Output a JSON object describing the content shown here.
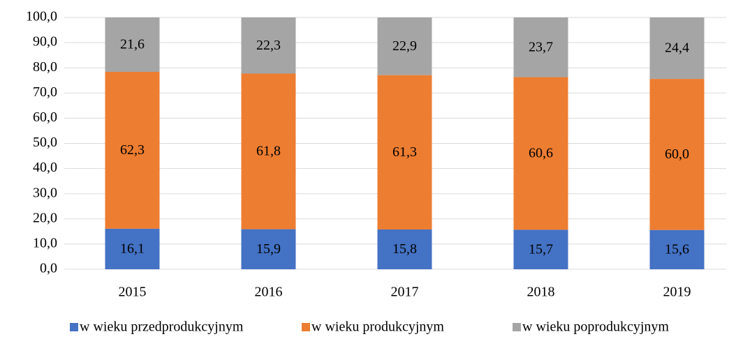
{
  "chart_data": {
    "type": "stacked_bar",
    "categories": [
      "2015",
      "2016",
      "2017",
      "2018",
      "2019"
    ],
    "series": [
      {
        "name": "w wieku przedprodukcyjnym",
        "color": "#4472c4",
        "values": [
          16.1,
          15.9,
          15.8,
          15.7,
          15.6
        ],
        "value_labels": [
          "16,1",
          "15,9",
          "15,8",
          "15,7",
          "15,6"
        ]
      },
      {
        "name": "w wieku produkcyjnym",
        "color": "#ed7d31",
        "values": [
          62.3,
          61.8,
          61.3,
          60.6,
          60.0
        ],
        "value_labels": [
          "62,3",
          "61,8",
          "61,3",
          "60,6",
          "60,0"
        ]
      },
      {
        "name": "w wieku poprodukcyjnym",
        "color": "#a5a5a5",
        "values": [
          21.6,
          22.3,
          22.9,
          23.7,
          24.4
        ],
        "value_labels": [
          "21,6",
          "22,3",
          "22,9",
          "23,7",
          "24,4"
        ]
      }
    ],
    "ylim": [
      0,
      100
    ],
    "yticks": [
      {
        "value": 0,
        "label": "0,0"
      },
      {
        "value": 10,
        "label": "10,0"
      },
      {
        "value": 20,
        "label": "20,0"
      },
      {
        "value": 30,
        "label": "30,0"
      },
      {
        "value": 40,
        "label": "40,0"
      },
      {
        "value": 50,
        "label": "50,0"
      },
      {
        "value": 60,
        "label": "60,0"
      },
      {
        "value": 70,
        "label": "70,0"
      },
      {
        "value": 80,
        "label": "80,0"
      },
      {
        "value": 90,
        "label": "90,0"
      },
      {
        "value": 100,
        "label": "100,0"
      }
    ],
    "grid": true,
    "legend": "bottom"
  }
}
